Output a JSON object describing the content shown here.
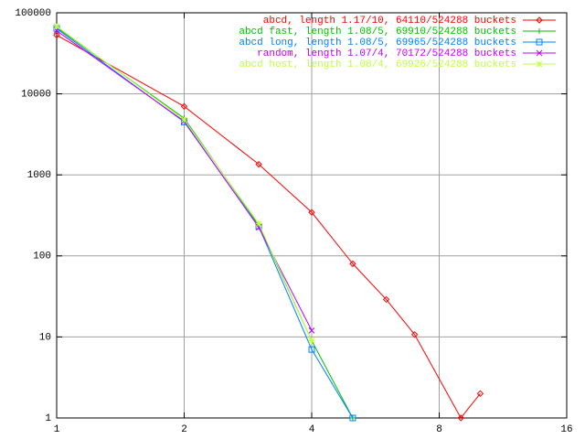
{
  "chart_data": {
    "type": "line",
    "xscale": "log",
    "yscale": "log",
    "xlim": [
      1,
      16
    ],
    "xticks": [
      1,
      2,
      4,
      8,
      16
    ],
    "ylim": [
      1,
      100000
    ],
    "yticks": [
      1,
      10,
      100,
      1000,
      10000,
      100000
    ],
    "grid": true,
    "legend": "top-right",
    "series": [
      {
        "name": "abcd, length 1.17/10, 64110/524288 buckets",
        "color": "#ff0000",
        "marker": "diamond",
        "x": [
          1,
          2,
          3,
          4,
          5,
          6,
          7,
          9,
          10
        ],
        "values": [
          53000,
          7000,
          1350,
          345,
          80,
          29,
          10.7,
          1,
          2
        ]
      },
      {
        "name": "abcd fast, length 1.08/5, 69910/524288 buckets",
        "color": "#00c000",
        "marker": "plus",
        "x": [
          1,
          2,
          3,
          4,
          5
        ],
        "values": [
          66000,
          5000,
          240,
          9,
          1
        ]
      },
      {
        "name": "abcd long, length 1.08/5, 69965/524288 buckets",
        "color": "#0080ff",
        "marker": "square",
        "x": [
          1,
          2,
          3,
          4,
          5
        ],
        "values": [
          64000,
          4500,
          230,
          7,
          1
        ]
      },
      {
        "name": "random, length 1.07/4, 70172/524288 buckets",
        "color": "#c000ff",
        "marker": "cross",
        "x": [
          1,
          2,
          3,
          4
        ],
        "values": [
          60000,
          4600,
          225,
          12
        ]
      },
      {
        "name": "abcd host, length 1.08/4, 69926/524288 buckets",
        "color": "#c0ff40",
        "marker": "star",
        "x": [
          1,
          2,
          3,
          4
        ],
        "values": [
          68000,
          4800,
          250,
          9
        ]
      }
    ]
  }
}
